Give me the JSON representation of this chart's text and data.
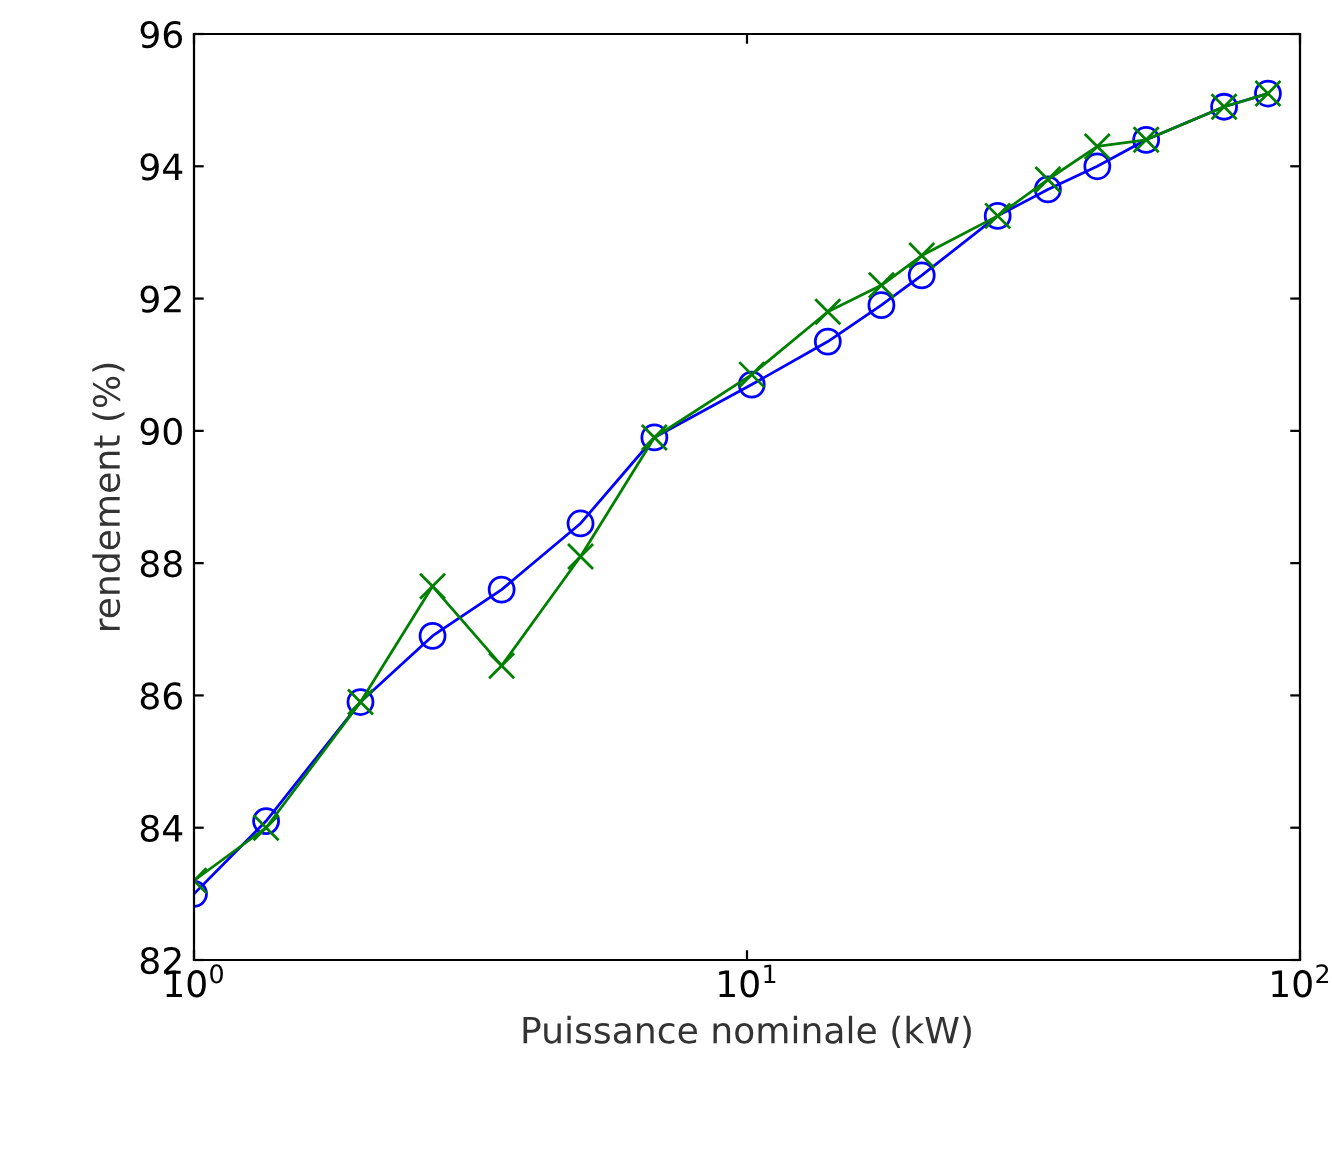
{
  "chart_data": {
    "type": "line",
    "xlabel": "Puissance nominale (kW)",
    "ylabel": "rendement (%)",
    "x": [
      1.0,
      1.35,
      2.0,
      2.7,
      3.6,
      5.0,
      6.8,
      10.2,
      14.0,
      17.5,
      20.7,
      28.4,
      35,
      43,
      52.7,
      72.9,
      87.5
    ],
    "series": [
      {
        "color": "#0000ff",
        "marker": "circle",
        "values": [
          83.0,
          84.1,
          85.9,
          86.9,
          87.6,
          88.6,
          89.9,
          90.7,
          91.35,
          91.9,
          92.35,
          93.25,
          93.65,
          94.0,
          94.4,
          94.9,
          95.1
        ]
      },
      {
        "color": "#008000",
        "marker": "cross",
        "values": [
          83.2,
          84.0,
          85.9,
          87.65,
          86.45,
          88.1,
          89.9,
          90.85,
          91.8,
          92.2,
          92.65,
          93.25,
          93.8,
          94.3,
          94.4,
          94.9,
          95.1
        ]
      }
    ],
    "log": "x",
    "xlim": [
      1,
      100
    ],
    "xticks": [
      {
        "value": 1,
        "label": "10$^{0}$"
      },
      {
        "value": 10,
        "label": "10$^{1}$"
      },
      {
        "value": 100,
        "label": "10$^{2}$"
      }
    ],
    "ylim": [
      82,
      96
    ],
    "yticks": [
      82,
      84,
      86,
      88,
      90,
      92,
      94,
      96
    ],
    "grid": false,
    "legend": false
  }
}
